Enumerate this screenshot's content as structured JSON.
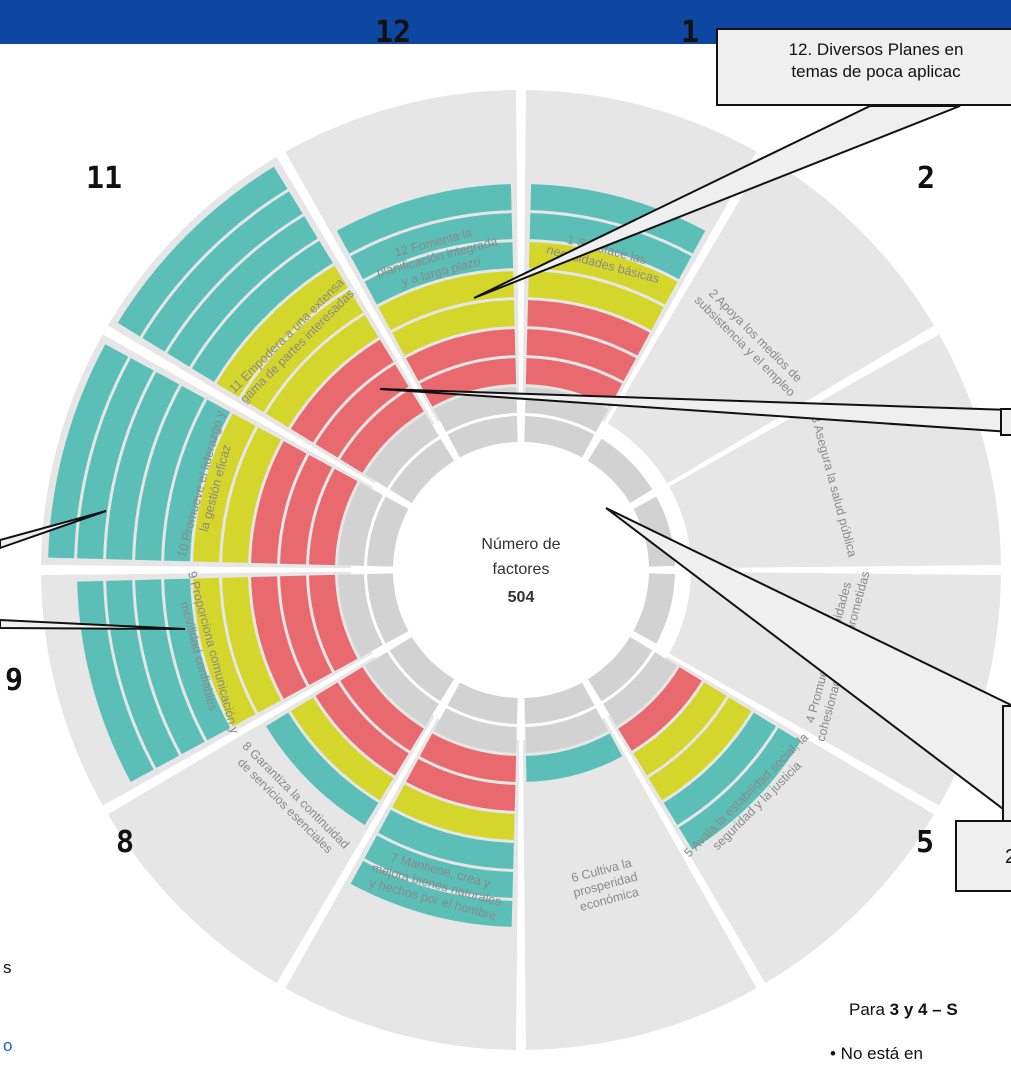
{
  "center": {
    "title_line1": "Número de",
    "title_line2": "factores",
    "total": "504"
  },
  "numbers": [
    "1",
    "2",
    "5",
    "8",
    "9",
    "11",
    "12"
  ],
  "segments": [
    {
      "label": [
        "1 Satisface las",
        "necesidades básicas"
      ]
    },
    {
      "label": [
        "2 Apoya los medios de",
        "subsistencia y el empleo"
      ]
    },
    {
      "label": [
        "3 Asegura la salud pública"
      ]
    },
    {
      "label": [
        "4 Promueve comunidades",
        "cohesionadas y comprometidas"
      ]
    },
    {
      "label": [
        "5 Avala la estabilidad social, la",
        "seguridad y la justicia"
      ]
    },
    {
      "label": [
        "6 Cultiva la",
        "prosperidad",
        "económica"
      ]
    },
    {
      "label": [
        "7 Mantiene, crea y",
        "mejora bienes naturales",
        "y hechos por el hombre"
      ]
    },
    {
      "label": [
        "8 Garantiza la continuidad",
        "de servicios esenciales"
      ]
    },
    {
      "label": [
        "9 Proporciona comunicación y",
        "movilidad confiables"
      ]
    },
    {
      "label": [
        "10 Promueve el liderazgo y",
        "la gestión eficaz"
      ]
    },
    {
      "label": [
        "11 Empodera a una extensa",
        "gama de partes interesadas"
      ]
    },
    {
      "label": [
        "12 Fomenta la",
        "planificación integrada",
        "y a largo plazo"
      ]
    }
  ],
  "colors": {
    "gray": "#d2d2d2",
    "red": "#e86a6f",
    "yellow": "#d4d62c",
    "teal": "#5bbfb8",
    "ring": "#e6e6e6",
    "header": "#0d47a1"
  },
  "bands": {
    "ring": [
      0,
      0,
      0,
      0,
      0,
      0,
      0,
      0,
      0,
      0,
      0,
      0
    ],
    "gray": [
      2,
      1,
      1,
      1,
      2,
      2,
      2,
      2,
      2,
      2,
      2,
      2
    ],
    "red": [
      3,
      0,
      0,
      0,
      1,
      0,
      2,
      2,
      3,
      3,
      3,
      2
    ],
    "yellow": [
      2,
      0,
      0,
      0,
      2,
      0,
      1,
      1,
      2,
      2,
      3,
      2
    ],
    "teal": [
      2,
      0,
      0,
      0,
      2,
      1,
      3,
      1,
      4,
      5,
      4,
      3
    ]
  },
  "callouts": {
    "main_line1": "12. Diversos Planes en",
    "main_line2": "temas de poca aplicac",
    "low2": "2"
  },
  "footer": {
    "para_prefix": "Para ",
    "para_bold": "3 y 4 – S",
    "bullet": "•  No está en",
    "left_s": "s",
    "left_o": "o"
  }
}
